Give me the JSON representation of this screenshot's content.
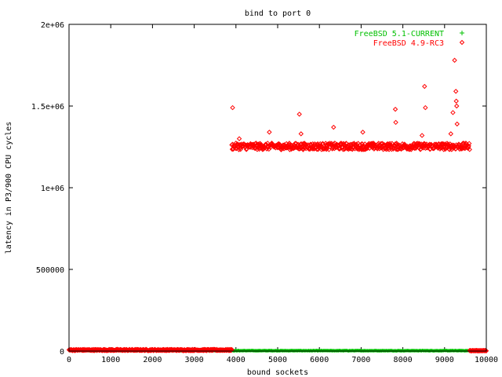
{
  "chart_data": {
    "type": "scatter",
    "title": "bind to port 0",
    "xlabel": "bound sockets",
    "ylabel": "latency in P3/900 CPU cycles",
    "xlim": [
      0,
      10000
    ],
    "ylim": [
      0,
      2000000
    ],
    "x_ticks": [
      0,
      1000,
      2000,
      3000,
      4000,
      5000,
      6000,
      7000,
      8000,
      9000,
      10000
    ],
    "x_tick_labels": [
      "0",
      "1000",
      "2000",
      "3000",
      "4000",
      "5000",
      "6000",
      "7000",
      "8000",
      "9000",
      "10000"
    ],
    "y_ticks": [
      0,
      500000,
      1000000,
      1500000,
      2000000
    ],
    "y_tick_labels": [
      "0",
      "500000",
      "1e+06",
      "1.5e+06",
      "2e+06"
    ],
    "grid": false,
    "legend_position": "top-right",
    "series": [
      {
        "name": "FreeBSD 5.1-CURRENT",
        "color": "#00c000",
        "marker": "plus",
        "segments": [
          {
            "x_start": 0,
            "x_end": 9600,
            "y_typical": 2000,
            "y_jitter": 3000
          }
        ],
        "outliers": []
      },
      {
        "name": "FreeBSD 4.9-RC3",
        "color": "#ff0000",
        "marker": "diamond",
        "segments": [
          {
            "x_start": 0,
            "x_end": 3900,
            "y_typical": 5000,
            "y_jitter": 8000
          },
          {
            "x_start": 3900,
            "x_end": 9600,
            "y_typical": 1245000,
            "y_jitter": 40000
          },
          {
            "x_start": 9600,
            "x_end": 10000,
            "y_typical": 2000,
            "y_jitter": 3000
          }
        ],
        "outliers": [
          {
            "x": 3920,
            "y": 1490000
          },
          {
            "x": 4080,
            "y": 1300000
          },
          {
            "x": 4800,
            "y": 1340000
          },
          {
            "x": 5520,
            "y": 1450000
          },
          {
            "x": 5560,
            "y": 1330000
          },
          {
            "x": 6340,
            "y": 1370000
          },
          {
            "x": 7040,
            "y": 1340000
          },
          {
            "x": 7820,
            "y": 1480000
          },
          {
            "x": 7830,
            "y": 1400000
          },
          {
            "x": 8460,
            "y": 1320000
          },
          {
            "x": 8520,
            "y": 1620000
          },
          {
            "x": 8540,
            "y": 1490000
          },
          {
            "x": 9150,
            "y": 1330000
          },
          {
            "x": 9200,
            "y": 1460000
          },
          {
            "x": 9240,
            "y": 1780000
          },
          {
            "x": 9270,
            "y": 1590000
          },
          {
            "x": 9280,
            "y": 1530000
          },
          {
            "x": 9290,
            "y": 1500000
          },
          {
            "x": 9300,
            "y": 1390000
          }
        ]
      }
    ]
  }
}
